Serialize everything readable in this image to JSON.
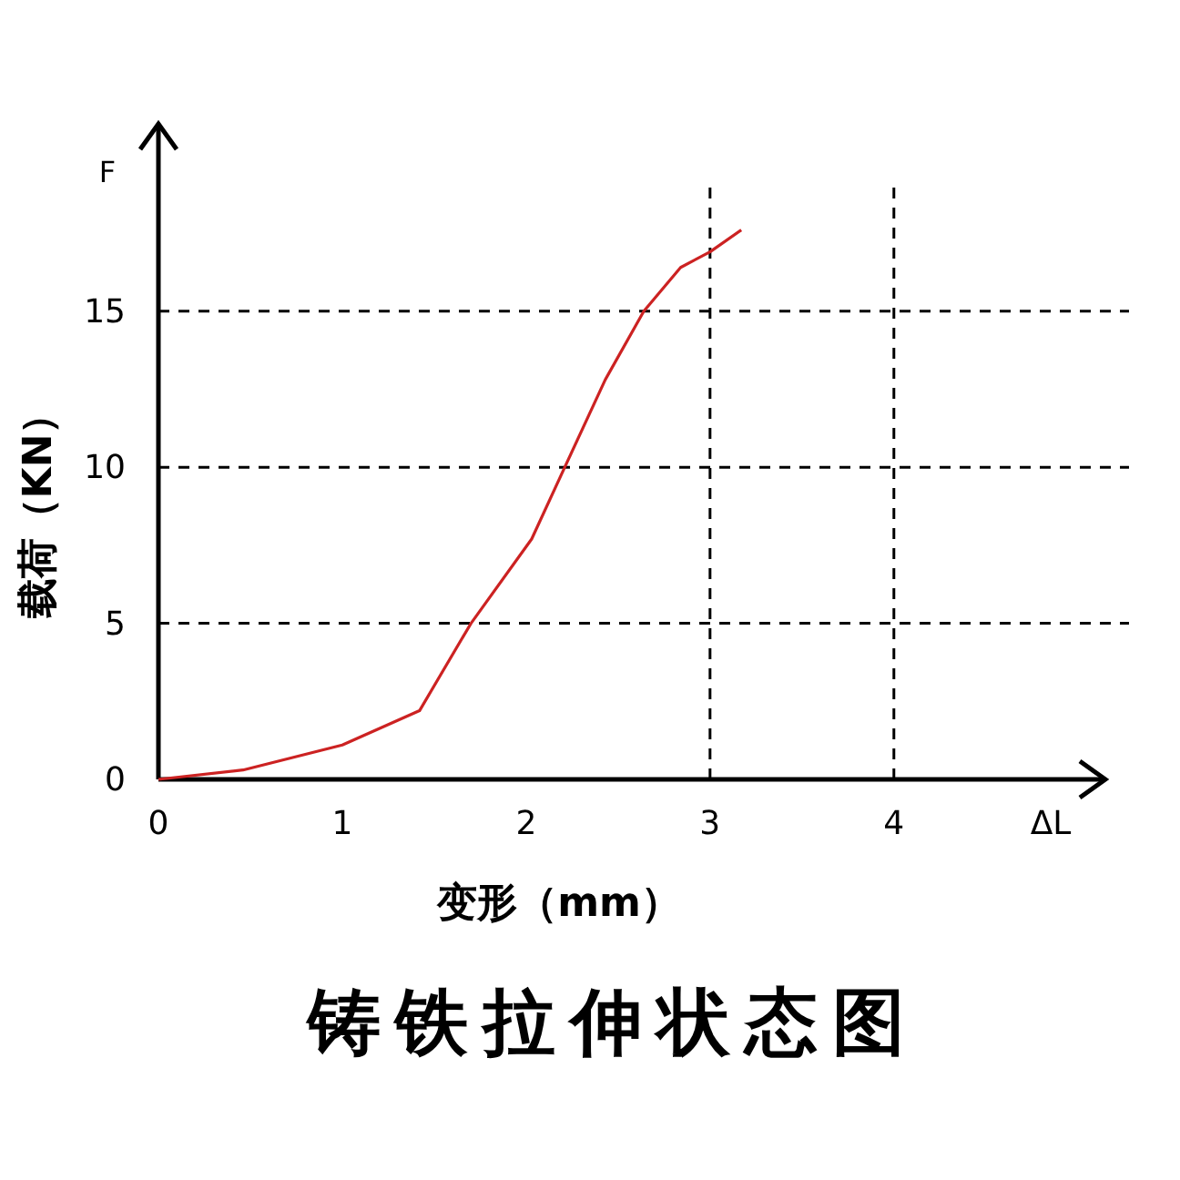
{
  "chart_data": {
    "type": "line",
    "title": "铸铁拉伸状态图",
    "xlabel": "变形（mm）",
    "ylabel": "载荷（KN）",
    "annotations": [
      "F",
      "ΔL"
    ],
    "x": [
      0,
      0.46,
      1.0,
      1.42,
      1.7,
      2.03,
      2.21,
      2.43,
      2.64,
      2.84,
      3.0,
      3.17
    ],
    "values": [
      0,
      0.3,
      1.1,
      2.2,
      5,
      7.7,
      10,
      12.8,
      15,
      16.4,
      16.9,
      17.6
    ],
    "color": "#cc2222",
    "xlim": [
      0,
      5.15
    ],
    "ylim": [
      0,
      21
    ],
    "xticks": [
      0,
      1,
      2,
      3,
      4
    ],
    "yticks": [
      0,
      5,
      10,
      15
    ],
    "ref_lines": [
      {
        "axis": "y",
        "value": 5
      },
      {
        "axis": "y",
        "value": 10
      },
      {
        "axis": "y",
        "value": 15
      },
      {
        "axis": "x",
        "value": 3
      },
      {
        "axis": "x",
        "value": 4
      }
    ]
  }
}
